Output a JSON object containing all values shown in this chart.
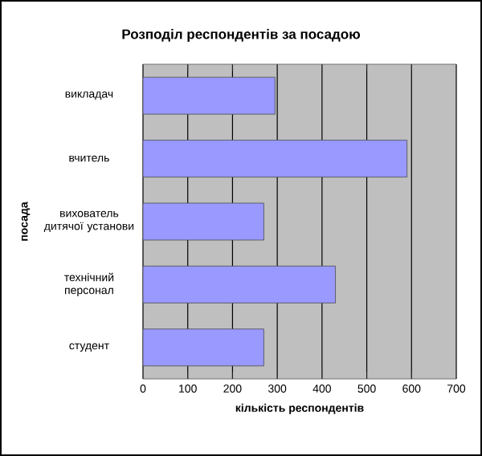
{
  "chart_data": {
    "type": "bar",
    "orientation": "horizontal",
    "title": "Розподіл респондентів за посадою",
    "xlabel": "кількість респондентів",
    "ylabel": "посада",
    "categories": [
      "викладач",
      "вчитель",
      "вихователь дитячої установи",
      "технічний персонал",
      "студент"
    ],
    "values": [
      295,
      590,
      270,
      430,
      270
    ],
    "color": "#9999ff",
    "xlim": [
      0,
      700
    ],
    "xticks": [
      0,
      100,
      200,
      300,
      400,
      500,
      600,
      700
    ],
    "grid": "x"
  }
}
